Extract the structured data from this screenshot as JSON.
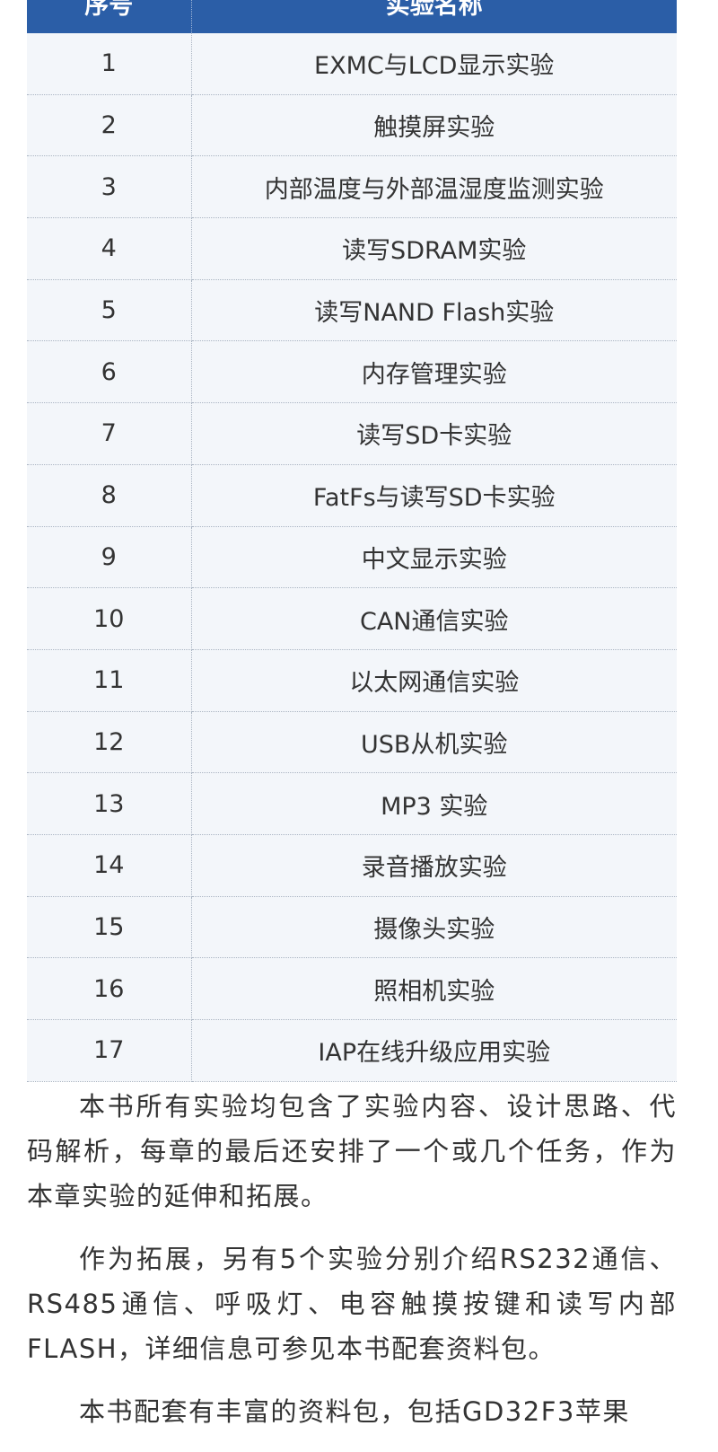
{
  "table": {
    "header": [
      "序号",
      "实验名称"
    ],
    "rows": [
      [
        "1",
        "EXMC与LCD显示实验"
      ],
      [
        "2",
        "触摸屏实验"
      ],
      [
        "3",
        "内部温度与外部温湿度监测实验"
      ],
      [
        "4",
        "读写SDRAM实验"
      ],
      [
        "5",
        "读写NAND Flash实验"
      ],
      [
        "6",
        "内存管理实验"
      ],
      [
        "7",
        "读写SD卡实验"
      ],
      [
        "8",
        "FatFs与读写SD卡实验"
      ],
      [
        "9",
        "中文显示实验"
      ],
      [
        "10",
        "CAN通信实验"
      ],
      [
        "11",
        "以太网通信实验"
      ],
      [
        "12",
        "USB从机实验"
      ],
      [
        "13",
        "MP3 实验"
      ],
      [
        "14",
        "录音播放实验"
      ],
      [
        "15",
        "摄像头实验"
      ],
      [
        "16",
        "照相机实验"
      ],
      [
        "17",
        "IAP在线升级应用实验"
      ]
    ]
  },
  "paragraphs": [
    "本书所有实验均包含了实验内容、设计思路、代码解析，每章的最后还安排了一个或几个任务，作为本章实验的延伸和拓展。",
    "作为拓展，另有5个实验分别介绍RS232通信、RS485通信、呼吸灯、电容触摸按键和读写内部FLASH，详细信息可参见本书配套资料包。",
    "本书配套有丰富的资料包，包括GD32F3苹果"
  ]
}
